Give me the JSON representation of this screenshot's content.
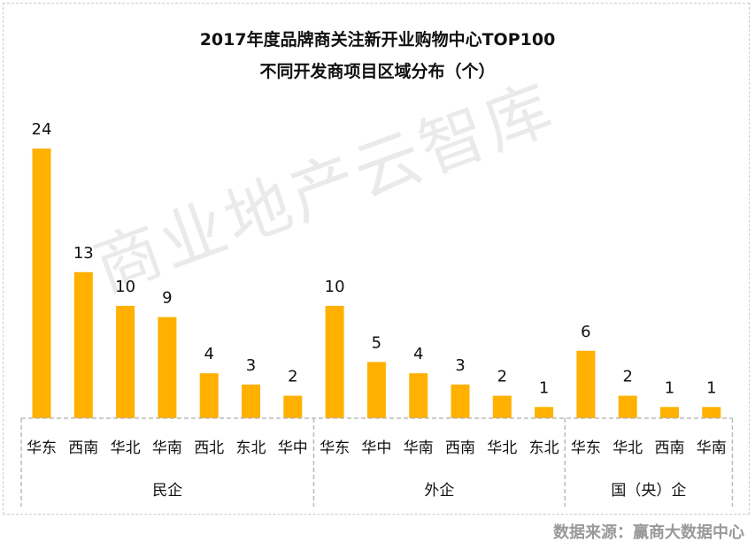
{
  "chart_data": {
    "type": "bar",
    "title": "2017年度品牌商关注新开业购物中心TOP100",
    "subtitle": "不同开发商项目区域分布（个）",
    "groups": [
      {
        "name": "民企",
        "categories": [
          "华东",
          "西南",
          "华北",
          "华南",
          "西北",
          "东北",
          "华中"
        ],
        "values": [
          24,
          13,
          10,
          9,
          4,
          3,
          2
        ]
      },
      {
        "name": "外企",
        "categories": [
          "华东",
          "华中",
          "华南",
          "西南",
          "华北",
          "东北"
        ],
        "values": [
          10,
          5,
          4,
          3,
          2,
          1
        ]
      },
      {
        "name": "国（央）企",
        "categories": [
          "华东",
          "华北",
          "西南",
          "华南"
        ],
        "values": [
          6,
          2,
          1,
          1
        ]
      }
    ],
    "ylim": [
      0,
      24
    ],
    "grid": false,
    "legend": "none",
    "bar_color": "#FFB000",
    "data_labels": true
  },
  "watermark": "商业地产云智库",
  "source": "数据来源：赢商大数据中心"
}
